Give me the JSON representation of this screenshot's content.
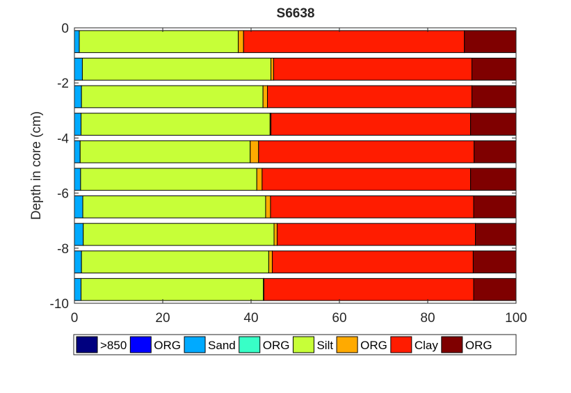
{
  "chart_data": {
    "type": "bar",
    "orientation": "horizontal",
    "stacked": true,
    "title": "S6638",
    "xlabel": "",
    "ylabel": "Depth in core (cm)",
    "xlim": [
      0,
      100
    ],
    "ylim": [
      -10,
      0
    ],
    "xticks": [
      0,
      20,
      40,
      60,
      80,
      100
    ],
    "yticks": [
      0,
      -2,
      -4,
      -6,
      -8,
      -10
    ],
    "grid": false,
    "legend_position": "bottom",
    "categories": [
      -0.5,
      -1.5,
      -2.5,
      -3.5,
      -4.5,
      -5.5,
      -6.5,
      -7.5,
      -8.5,
      -9.5
    ],
    "series": [
      {
        "name": ">850",
        "color": "#00007f",
        "values": [
          0,
          0,
          0,
          0,
          0,
          0,
          0,
          0,
          0,
          0
        ]
      },
      {
        "name": "ORG",
        "color": "#0000ff",
        "values": [
          0,
          0,
          0,
          0,
          0,
          0,
          0,
          0,
          0,
          0
        ]
      },
      {
        "name": "Sand",
        "color": "#00aaff",
        "values": [
          1.1,
          1.8,
          1.6,
          1.5,
          1.3,
          1.4,
          1.9,
          2.0,
          1.6,
          1.5
        ]
      },
      {
        "name": "ORG",
        "color": "#38ffc7",
        "values": [
          0,
          0,
          0,
          0,
          0,
          0,
          0,
          0,
          0,
          0
        ]
      },
      {
        "name": "Silt",
        "color": "#c7ff38",
        "values": [
          36.0,
          42.7,
          41.1,
          42.8,
          38.5,
          39.9,
          41.4,
          43.2,
          42.4,
          41.3
        ]
      },
      {
        "name": "ORG",
        "color": "#ffaa00",
        "values": [
          1.2,
          0.6,
          1.0,
          0.2,
          1.9,
          1.2,
          1.1,
          0.7,
          0.8,
          0.1
        ]
      },
      {
        "name": "Clay",
        "color": "#ff1c00",
        "values": [
          50.0,
          44.9,
          46.3,
          45.2,
          48.8,
          47.2,
          46.0,
          44.9,
          45.5,
          47.5
        ]
      },
      {
        "name": "ORG",
        "color": "#7f0000",
        "values": [
          11.7,
          10.0,
          10.0,
          10.3,
          9.5,
          10.3,
          9.6,
          9.2,
          9.7,
          9.6
        ]
      }
    ]
  }
}
